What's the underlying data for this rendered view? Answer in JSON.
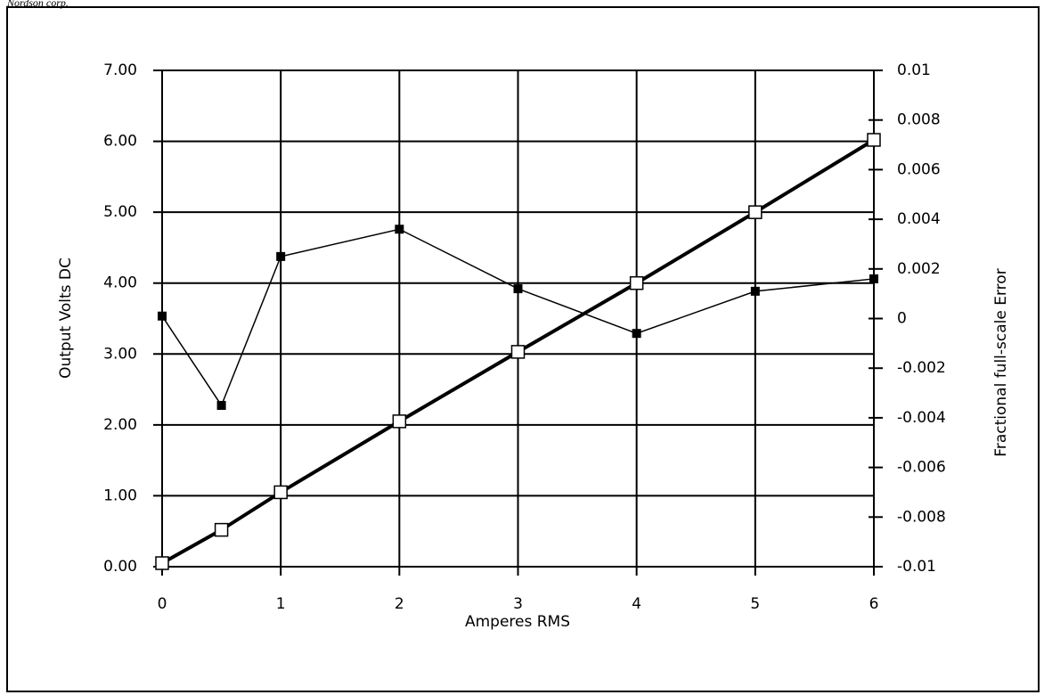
{
  "chart_data": {
    "type": "line",
    "caption": "Nordson corp.",
    "xlabel": "Amperes RMS",
    "ylabel": "Output Volts DC",
    "y2label": "Fractional full-scale Error",
    "x": [
      0,
      0.5,
      1,
      2,
      3,
      4,
      5,
      6
    ],
    "series": [
      {
        "name": "Output Volts DC",
        "color": "#000000",
        "marker": "square-open",
        "linewidth": 4,
        "values": [
          0.05,
          0.52,
          1.05,
          2.05,
          3.03,
          4.0,
          5.0,
          6.02
        ]
      },
      {
        "name": "Fractional full-scale Error",
        "color": "#000000",
        "marker": "square-filled",
        "linewidth": 1.5,
        "axis": "y2",
        "values": [
          0.0001,
          -0.0035,
          0.0025,
          0.0036,
          0.0012,
          -0.0006,
          0.0011,
          0.0016
        ]
      }
    ],
    "xlim": [
      0,
      6
    ],
    "xticks": [
      0,
      1,
      2,
      3,
      4,
      5,
      6
    ],
    "ylim": [
      0,
      7
    ],
    "yticks": [
      {
        "value": 0,
        "label": "0.00"
      },
      {
        "value": 1,
        "label": "1.00"
      },
      {
        "value": 2,
        "label": "2.00"
      },
      {
        "value": 3,
        "label": "3.00"
      },
      {
        "value": 4,
        "label": "4.00"
      },
      {
        "value": 5,
        "label": "5.00"
      },
      {
        "value": 6,
        "label": "6.00"
      },
      {
        "value": 7,
        "label": "7.00"
      }
    ],
    "y2lim": [
      -0.01,
      0.01
    ],
    "y2ticks": [
      0.01,
      0.008,
      0.006,
      0.004,
      0.002,
      0,
      -0.002,
      -0.004,
      -0.006,
      -0.008,
      -0.01
    ],
    "grid": true
  }
}
